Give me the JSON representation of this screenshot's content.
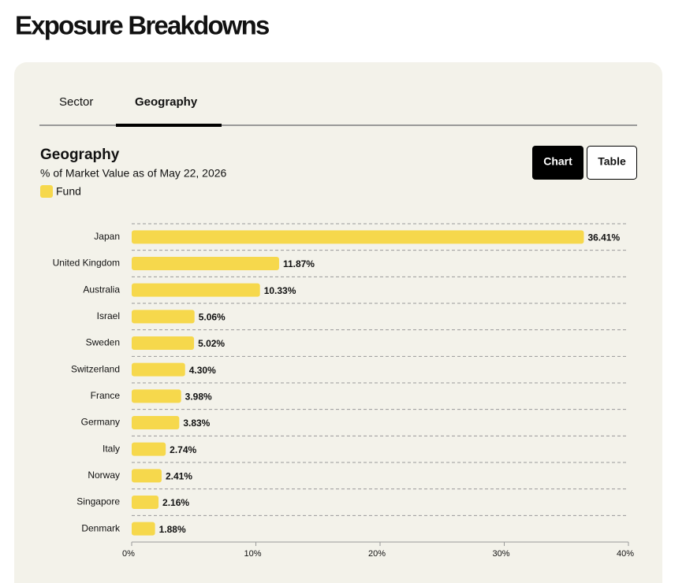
{
  "page": {
    "heading": "Exposure Breakdowns"
  },
  "tabs": [
    "Sector",
    "Geography"
  ],
  "toggle": [
    "Chart",
    "Table"
  ],
  "chart_data": {
    "type": "bar",
    "title": "Geography",
    "subtitle": "% of Market Value as of May 22, 2026",
    "categories": [
      "Japan",
      "United Kingdom",
      "Australia",
      "Israel",
      "Sweden",
      "Switzerland",
      "France",
      "Germany",
      "Italy",
      "Norway",
      "Singapore",
      "Denmark"
    ],
    "series": [
      {
        "name": "Fund",
        "color": "#f6d84c",
        "values": [
          36.41,
          11.87,
          10.33,
          5.06,
          5.02,
          4.3,
          3.98,
          3.83,
          2.74,
          2.41,
          2.16,
          1.88
        ],
        "value_labels": [
          "36.41%",
          "11.87%",
          "10.33%",
          "5.06%",
          "5.02%",
          "4.30%",
          "3.98%",
          "3.83%",
          "2.74%",
          "2.41%",
          "2.16%",
          "1.88%"
        ]
      }
    ],
    "xlim": [
      0,
      40
    ],
    "xticks": [
      {
        "value": 0,
        "label": "0%"
      },
      {
        "value": 10,
        "label": "10%"
      },
      {
        "value": 20,
        "label": "20%"
      },
      {
        "value": 30,
        "label": "30%"
      },
      {
        "value": 40,
        "label": "40%"
      }
    ],
    "grid": true
  }
}
